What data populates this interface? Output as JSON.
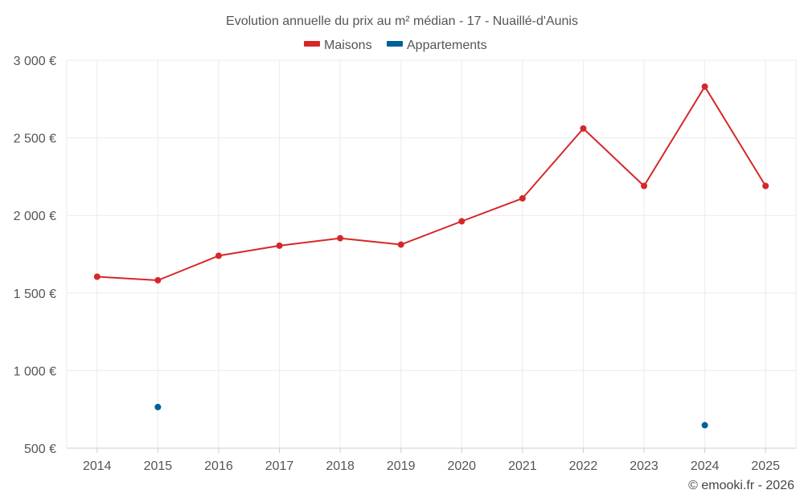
{
  "chart_data": {
    "type": "line",
    "title": "Evolution annuelle du prix au m² médian - 17 - Nuaillé-d'Aunis",
    "categories": [
      "2014",
      "2015",
      "2016",
      "2017",
      "2018",
      "2019",
      "2020",
      "2021",
      "2022",
      "2023",
      "2024",
      "2025"
    ],
    "ylim": [
      500,
      3000
    ],
    "yticks": [
      500,
      1000,
      1500,
      2000,
      2500,
      3000
    ],
    "ytick_labels": [
      "500 €",
      "1 000 €",
      "1 500 €",
      "2 000 €",
      "2 500 €",
      "3 000 €"
    ],
    "grid": true,
    "legend_position": "top-center",
    "series": [
      {
        "name": "Maisons",
        "color": "#d62728",
        "style": "line",
        "values": [
          1605,
          1582,
          1740,
          1805,
          1853,
          1812,
          1962,
          2110,
          2560,
          2190,
          2830,
          2190
        ]
      },
      {
        "name": "Appartements",
        "color": "#005f99",
        "style": "points",
        "values": [
          null,
          765,
          null,
          null,
          null,
          null,
          null,
          null,
          null,
          null,
          648,
          null
        ]
      }
    ]
  },
  "credit": "© emooki.fr - 2026"
}
